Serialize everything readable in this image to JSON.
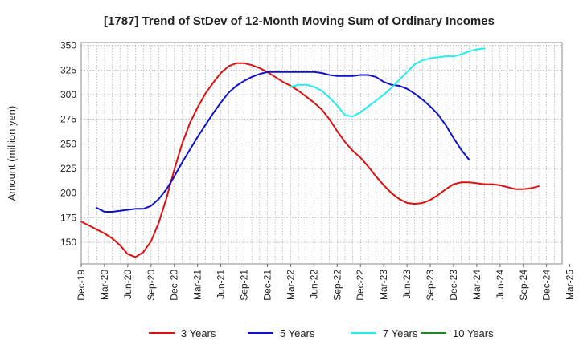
{
  "chart_data": {
    "type": "line",
    "title": "[1787]  Trend of StDev of 12-Month Moving Sum of Ordinary Incomes",
    "xlabel": "",
    "ylabel": "Amount (million yen)",
    "ylim": [
      128,
      353
    ],
    "yticks": [
      150,
      175,
      200,
      225,
      250,
      275,
      300,
      325,
      350
    ],
    "x_start": "Dec-19",
    "x_step_months": 1,
    "x_count": 63,
    "xtick_labels": [
      "Dec-19",
      "Mar-20",
      "Jun-20",
      "Sep-20",
      "Dec-20",
      "Mar-21",
      "Jun-21",
      "Sep-21",
      "Dec-21",
      "Mar-22",
      "Jun-22",
      "Sep-22",
      "Dec-22",
      "Mar-23",
      "Jun-23",
      "Sep-23",
      "Dec-23",
      "Mar-24",
      "Jun-24",
      "Sep-24",
      "Dec-24",
      "Mar-25"
    ],
    "grid": true,
    "legend_position": "bottom",
    "series": [
      {
        "name": "3 Years",
        "color": "#dd1111",
        "start_index": 0,
        "values": [
          171,
          167,
          163,
          159,
          154,
          147,
          138,
          135,
          140,
          151,
          170,
          195,
          224,
          250,
          271,
          287,
          301,
          312,
          322,
          329,
          332,
          332,
          330,
          327,
          323,
          318,
          313,
          309,
          304,
          298,
          292,
          285,
          275,
          263,
          252,
          243,
          236,
          227,
          217,
          208,
          200,
          194,
          190,
          189,
          190,
          193,
          198,
          204,
          209,
          211,
          211,
          210,
          209,
          209,
          208,
          206,
          204,
          204,
          205,
          207
        ]
      },
      {
        "name": "5 Years",
        "color": "#1111cc",
        "start_index": 2,
        "values": [
          185,
          181,
          181,
          182,
          183,
          184,
          184,
          187,
          194,
          204,
          217,
          231,
          244,
          257,
          269,
          281,
          292,
          302,
          309,
          314,
          318,
          321,
          323,
          323,
          323,
          323,
          323,
          323,
          323,
          322,
          320,
          319,
          319,
          319,
          320,
          320,
          318,
          313,
          310,
          309,
          306,
          301,
          295,
          288,
          280,
          269,
          256,
          244,
          234
        ]
      },
      {
        "name": "7 Years",
        "color": "#22eeee",
        "start_index": 27,
        "values": [
          308,
          310,
          310,
          308,
          304,
          297,
          289,
          279,
          278,
          282,
          288,
          294,
          300,
          307,
          315,
          323,
          331,
          335,
          337,
          338,
          339,
          339,
          341,
          344,
          346,
          347
        ]
      },
      {
        "name": "10 Years",
        "color": "#228822",
        "start_index": 0,
        "values": []
      }
    ]
  }
}
